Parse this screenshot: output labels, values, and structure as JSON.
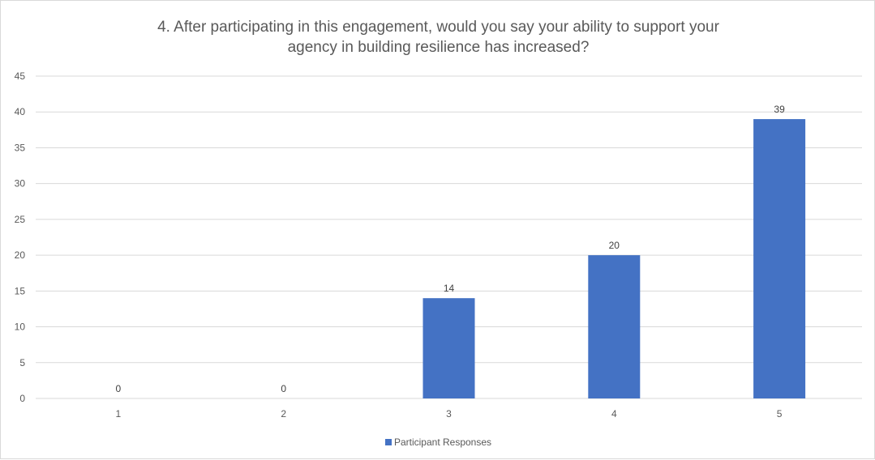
{
  "colors": {
    "bar": "#4472c4",
    "gridline": "#d9d9d9",
    "axis_text": "#595959"
  },
  "chart_data": {
    "type": "bar",
    "title_lines": [
      "4. After participating in this engagement, would you say your ability to support your",
      "agency in building resilience has increased?"
    ],
    "categories": [
      "1",
      "2",
      "3",
      "4",
      "5"
    ],
    "series": [
      {
        "name": "Participant Responses",
        "values": [
          0,
          0,
          14,
          20,
          39
        ]
      }
    ],
    "ylim": [
      0,
      45
    ],
    "yticks": [
      0,
      5,
      10,
      15,
      20,
      25,
      30,
      35,
      40,
      45
    ],
    "grid": true,
    "data_labels": true,
    "legend_position": "bottom"
  }
}
